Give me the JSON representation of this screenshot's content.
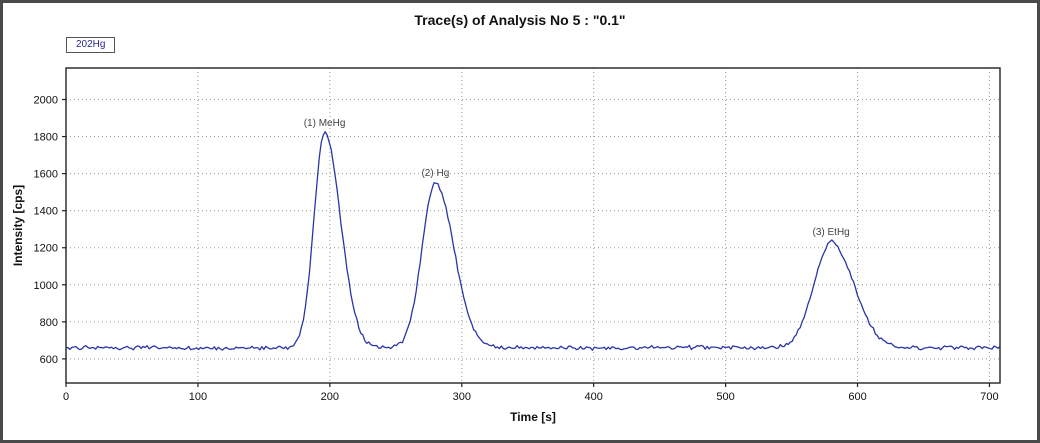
{
  "figure": {
    "frame_border_color": "#4a4a4a"
  },
  "chart_data": {
    "type": "line",
    "title": "Trace(s) of Analysis No 5 : \"0.1\"",
    "xlabel": "Time [s]",
    "ylabel": "Intensity [cps]",
    "xlim": [
      0,
      708
    ],
    "ylim": [
      470,
      2170
    ],
    "x_ticks": [
      0,
      100,
      200,
      300,
      400,
      500,
      600,
      700
    ],
    "y_ticks": [
      600,
      800,
      1000,
      1200,
      1400,
      1600,
      1800,
      2000
    ],
    "grid": "dotted",
    "grid_color": "#9a9a9a",
    "axis_color": "#222222",
    "legend_position": "top-left-outside",
    "series": [
      {
        "name": "202Hg",
        "color": "#2a35a8",
        "baseline_cps": 660,
        "noise_cps": 14,
        "sample_step_s": 1.5,
        "peaks": [
          {
            "label": "(1) MeHg",
            "center_s": 196,
            "apex_cps": 1820,
            "sigma_left_s": 8,
            "sigma_right_s": 12
          },
          {
            "label": "(2) Hg",
            "center_s": 280,
            "apex_cps": 1550,
            "sigma_left_s": 10,
            "sigma_right_s": 14
          },
          {
            "label": "(3) EtHg",
            "center_s": 580,
            "apex_cps": 1230,
            "sigma_left_s": 13,
            "sigma_right_s": 17
          }
        ]
      }
    ]
  }
}
